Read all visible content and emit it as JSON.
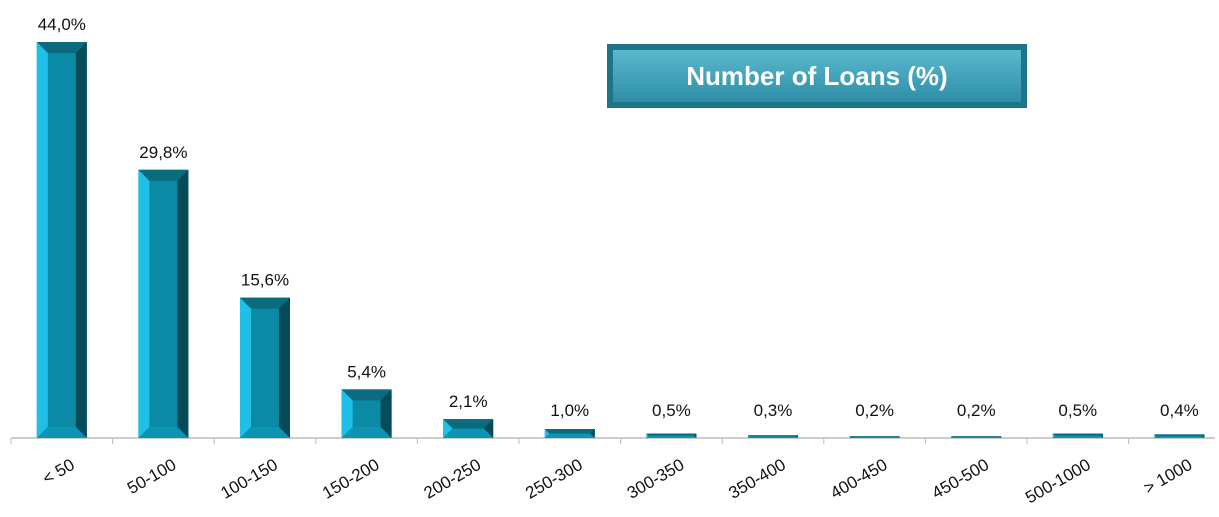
{
  "chart_data": {
    "type": "bar",
    "title": "Number of Loans (%)",
    "categories": [
      "< 50",
      "50-100",
      "100-150",
      "150-200",
      "200-250",
      "250-300",
      "300-350",
      "350-400",
      "400-450",
      "450-500",
      "500-1000",
      "> 1000"
    ],
    "values": [
      44.0,
      29.8,
      15.6,
      5.4,
      2.1,
      1.0,
      0.5,
      0.3,
      0.2,
      0.2,
      0.5,
      0.4
    ],
    "value_labels": [
      "44,0%",
      "29,8%",
      "15,6%",
      "5,4%",
      "2,1%",
      "1,0%",
      "0,5%",
      "0,3%",
      "0,2%",
      "0,2%",
      "0,5%",
      "0,4%"
    ],
    "color": "#1ec0e8"
  }
}
